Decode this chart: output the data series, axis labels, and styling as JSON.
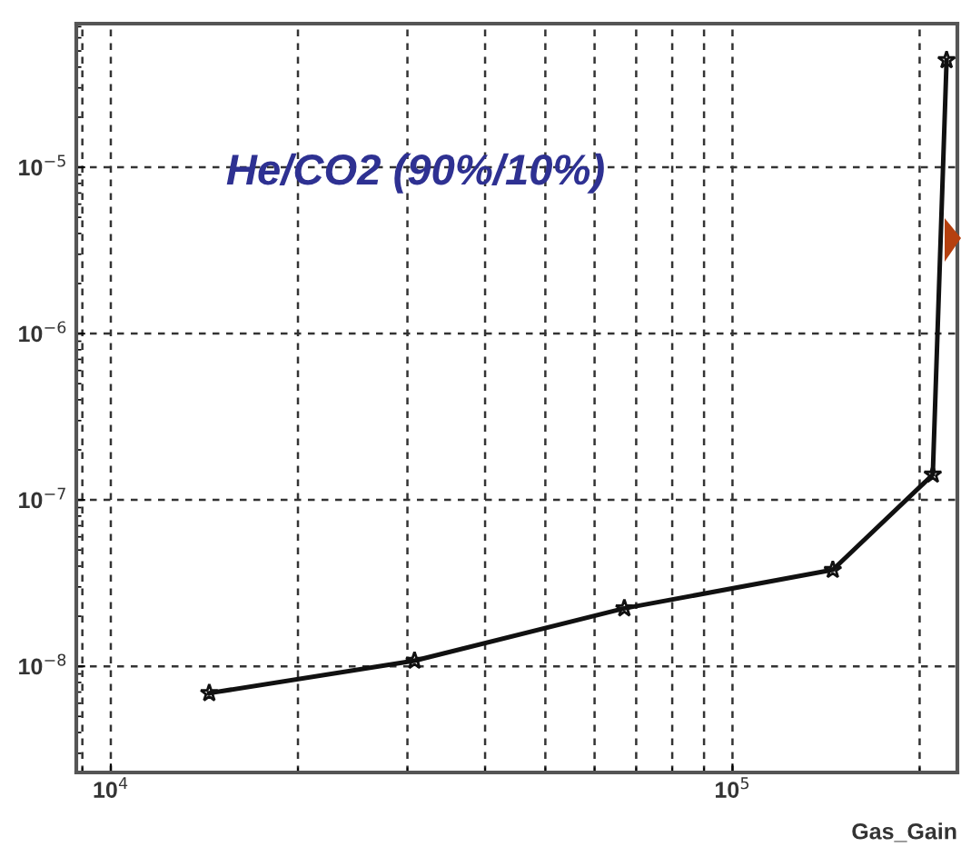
{
  "chart_data": {
    "type": "line",
    "xlabel": "Gas_Gain",
    "annotations": [
      "He/CO2 (90%/10%)"
    ],
    "x": [
      14400,
      30800,
      67000,
      145000,
      210000,
      221000
    ],
    "series": [
      {
        "color": "#111111",
        "values": [
          6.9e-09,
          1.08e-08,
          2.23e-08,
          3.8e-08,
          1.42e-07,
          4.4e-05
        ]
      }
    ],
    "log": "xy",
    "xlim": [
      8800,
      230000
    ],
    "ylim": [
      2.3e-09,
      7.3e-05
    ],
    "xticks": [
      {
        "value": 10000,
        "label": "10$^{4}$"
      },
      {
        "value": 100000,
        "label": "10$^{5}$"
      }
    ],
    "yticks": [
      {
        "value": 1e-08,
        "label": "10$^{−8}$"
      },
      {
        "value": 1e-07,
        "label": "10$^{−7}$"
      },
      {
        "value": 1e-06,
        "label": "10$^{−6}$"
      },
      {
        "value": 1e-05,
        "label": "10$^{−5}$"
      }
    ],
    "grid": true,
    "marker": "star",
    "line_style": "solid"
  }
}
